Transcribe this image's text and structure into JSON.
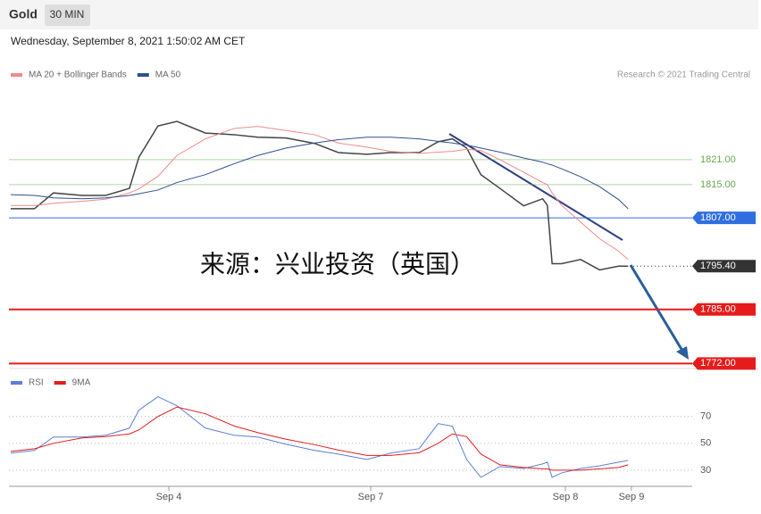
{
  "header": {
    "symbol": "Gold",
    "interval": "30 MIN",
    "timestamp": "Wednesday, September 8, 2021 1:50:02 AM CET"
  },
  "chart_data": [
    {
      "type": "line",
      "annotation": "来源：兴业投资（英国）",
      "source": "Research © 2021 Trading Central",
      "x": [
        0,
        5,
        9,
        15,
        20,
        25,
        27,
        31,
        35,
        41,
        47,
        52,
        58,
        64,
        69,
        75,
        80,
        86,
        90,
        93,
        96,
        99,
        103,
        108,
        112,
        113,
        114,
        116,
        120,
        124,
        128,
        130
      ],
      "xlim": [
        0,
        143.5
      ],
      "ylim": [
        1771,
        1839
      ],
      "series": [
        {
          "color": "#444444",
          "values": [
            1809.2,
            1809.2,
            1813,
            1812.4,
            1812.4,
            1814.1,
            1821.6,
            1829.1,
            1830.2,
            1827.4,
            1827,
            1826.4,
            1826.2,
            1824.9,
            1822.7,
            1822.3,
            1822.7,
            1822.7,
            1825.3,
            1826,
            1823.8,
            1817.4,
            1814.1,
            1809.9,
            1811.6,
            1810,
            1796,
            1796,
            1797,
            1794.5,
            1795.4,
            1795.4
          ]
        },
        {
          "name": "MA 20 + Bollinger Bands",
          "color": "#f08a8a",
          "values": [
            1810,
            1810,
            1810.5,
            1811,
            1811.5,
            1813,
            1814,
            1817,
            1822,
            1826,
            1828.5,
            1829,
            1828,
            1827,
            1825,
            1824,
            1823,
            1822.5,
            1822.8,
            1823,
            1823.5,
            1823.2,
            1821,
            1818,
            1815.5,
            1815,
            1813,
            1810,
            1806,
            1802,
            1799,
            1797
          ]
        },
        {
          "name": "MA 50",
          "color": "#2f4f8f",
          "values": [
            1812.6,
            1812.4,
            1811.8,
            1811.6,
            1811.8,
            1812.4,
            1812.8,
            1813.7,
            1815.5,
            1817.4,
            1820,
            1822,
            1823.8,
            1825,
            1825.8,
            1826.4,
            1826.4,
            1826,
            1825.4,
            1825,
            1824.5,
            1823.8,
            1822.8,
            1821.4,
            1820.4,
            1820,
            1819.7,
            1818.8,
            1816.9,
            1814.5,
            1811.4,
            1809.2
          ]
        }
      ],
      "levels": [
        {
          "value": 1821,
          "label": "1821.00",
          "color": "#6aa84f",
          "boxed": false,
          "dotted": false
        },
        {
          "value": 1815,
          "label": "1815.00",
          "color": "#6aa84f",
          "boxed": false,
          "dotted": false
        },
        {
          "value": 1807,
          "label": "1807.00",
          "color": "#2f6fe0",
          "boxed": true,
          "dotted": false
        },
        {
          "value": 1795.4,
          "label": "1795.40",
          "color": "#333333",
          "boxed": true,
          "dotted": true
        },
        {
          "value": 1785,
          "label": "1785.00",
          "color": "#e51c1c",
          "boxed": true,
          "dotted": false
        },
        {
          "value": 1772,
          "label": "1772.00",
          "color": "#e51c1c",
          "boxed": true,
          "dotted": false
        }
      ]
    },
    {
      "type": "line",
      "x": [
        0,
        5,
        9,
        15,
        20,
        25,
        27,
        31,
        35,
        41,
        47,
        52,
        58,
        64,
        69,
        75,
        80,
        86,
        90,
        93,
        96,
        99,
        103,
        108,
        112,
        113,
        114,
        116,
        120,
        124,
        128,
        130
      ],
      "xlim": [
        0,
        143.5
      ],
      "ylim": [
        18,
        101
      ],
      "yticks": [
        70,
        50,
        30
      ],
      "grid": true,
      "xticks": [
        {
          "value": 33.3,
          "label": "Sep 4"
        },
        {
          "value": 75.8,
          "label": "Sep 7"
        },
        {
          "value": 116.8,
          "label": "Sep 8"
        },
        {
          "value": 130.7,
          "label": "Sep 9"
        }
      ],
      "series": [
        {
          "name": "RSI",
          "color": "#5b7fd6",
          "values": [
            42.7,
            44.7,
            54.7,
            54.7,
            56,
            61.3,
            74.7,
            84.7,
            78,
            61.3,
            56,
            54.7,
            49.3,
            44.7,
            42,
            38,
            42.7,
            46,
            64.7,
            62.7,
            38,
            24.7,
            32.7,
            31.3,
            34.7,
            36,
            24.7,
            28,
            31.3,
            33.3,
            36,
            37.3
          ]
        },
        {
          "name": "9MA",
          "color": "#e51c1c",
          "values": [
            44,
            46,
            50,
            54,
            55,
            57,
            60,
            70,
            77,
            72,
            63,
            58,
            53,
            49,
            45,
            41,
            41,
            43,
            50,
            57,
            55,
            42,
            34,
            32,
            31,
            31,
            30,
            30,
            30,
            31,
            32,
            34
          ]
        }
      ]
    }
  ]
}
